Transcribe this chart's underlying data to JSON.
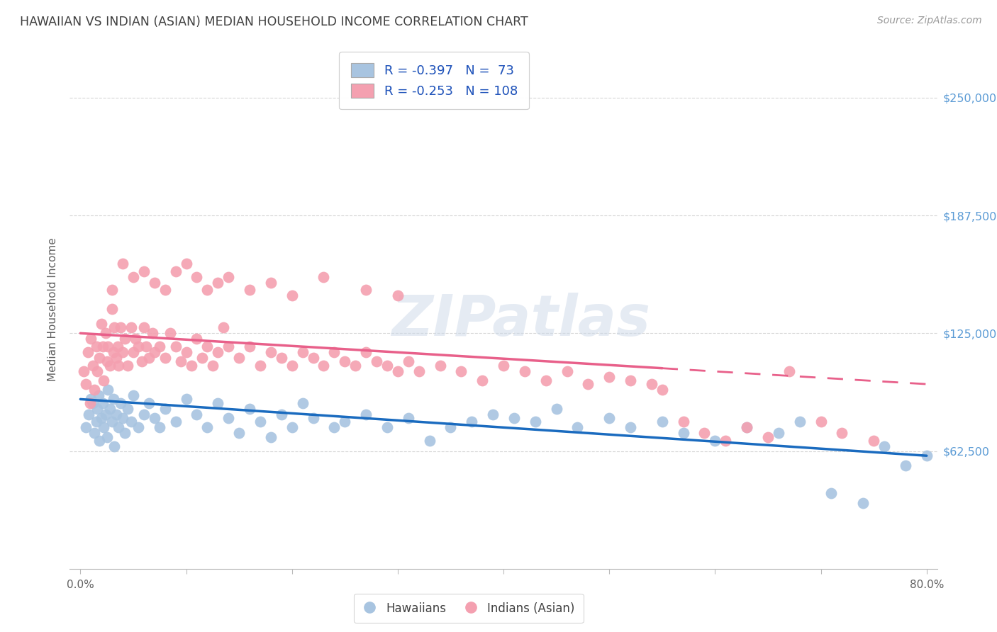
{
  "title": "HAWAIIAN VS INDIAN (ASIAN) MEDIAN HOUSEHOLD INCOME CORRELATION CHART",
  "source": "Source: ZipAtlas.com",
  "ylabel": "Median Household Income",
  "hawaiian_color": "#a8c4e0",
  "indian_color": "#f4a0b0",
  "hawaiian_line_color": "#1a6bbf",
  "indian_line_color": "#e8608a",
  "hawaiians_label": "Hawaiians",
  "indians_label": "Indians (Asian)",
  "watermark": "ZIPatlas",
  "hawaiian_R": -0.397,
  "hawaiian_N": 73,
  "indian_R": -0.253,
  "indian_N": 108,
  "x_min": 0.0,
  "x_max": 80.0,
  "y_min": 0,
  "y_max": 275000,
  "y_ticks": [
    62500,
    125000,
    187500,
    250000
  ],
  "y_tick_labels": [
    "$62,500",
    "$125,000",
    "$187,500",
    "$250,000"
  ],
  "hawaiian_trend_x0": 0,
  "hawaiian_trend_x1": 80,
  "hawaiian_trend_y0": 90000,
  "hawaiian_trend_y1": 60000,
  "indian_trend_solid_x0": 0,
  "indian_trend_solid_x1": 55,
  "indian_trend_dashed_x0": 55,
  "indian_trend_dashed_x1": 80,
  "indian_trend_y0": 125000,
  "indian_trend_y1": 98000,
  "bg_color": "#ffffff",
  "grid_color": "#cccccc",
  "tick_label_color_right": "#5b9bd5",
  "title_color": "#404040",
  "axis_label_color": "#606060",
  "hawaiian_scatter_x": [
    0.5,
    0.8,
    1.0,
    1.2,
    1.3,
    1.5,
    1.6,
    1.7,
    1.8,
    2.0,
    2.1,
    2.2,
    2.4,
    2.5,
    2.6,
    2.8,
    3.0,
    3.1,
    3.2,
    3.4,
    3.6,
    3.8,
    4.0,
    4.2,
    4.5,
    4.8,
    5.0,
    5.5,
    6.0,
    6.5,
    7.0,
    7.5,
    8.0,
    9.0,
    10.0,
    11.0,
    12.0,
    13.0,
    14.0,
    15.0,
    16.0,
    17.0,
    18.0,
    19.0,
    20.0,
    21.0,
    22.0,
    24.0,
    25.0,
    27.0,
    29.0,
    31.0,
    33.0,
    35.0,
    37.0,
    39.0,
    41.0,
    43.0,
    45.0,
    47.0,
    50.0,
    52.0,
    55.0,
    57.0,
    60.0,
    63.0,
    66.0,
    68.0,
    71.0,
    74.0,
    76.0,
    78.0,
    80.0
  ],
  "hawaiian_scatter_y": [
    75000,
    82000,
    90000,
    88000,
    72000,
    78000,
    85000,
    92000,
    68000,
    80000,
    88000,
    75000,
    82000,
    70000,
    95000,
    85000,
    78000,
    90000,
    65000,
    82000,
    75000,
    88000,
    80000,
    72000,
    85000,
    78000,
    92000,
    75000,
    82000,
    88000,
    80000,
    75000,
    85000,
    78000,
    90000,
    82000,
    75000,
    88000,
    80000,
    72000,
    85000,
    78000,
    70000,
    82000,
    75000,
    88000,
    80000,
    75000,
    78000,
    82000,
    75000,
    80000,
    68000,
    75000,
    78000,
    82000,
    80000,
    78000,
    85000,
    75000,
    80000,
    75000,
    78000,
    72000,
    68000,
    75000,
    72000,
    78000,
    40000,
    35000,
    65000,
    55000,
    60000
  ],
  "indian_scatter_x": [
    0.3,
    0.5,
    0.7,
    0.9,
    1.0,
    1.2,
    1.3,
    1.5,
    1.6,
    1.8,
    2.0,
    2.1,
    2.2,
    2.4,
    2.5,
    2.6,
    2.8,
    3.0,
    3.1,
    3.2,
    3.4,
    3.5,
    3.6,
    3.8,
    4.0,
    4.2,
    4.5,
    4.8,
    5.0,
    5.2,
    5.5,
    5.8,
    6.0,
    6.2,
    6.5,
    6.8,
    7.0,
    7.5,
    8.0,
    8.5,
    9.0,
    9.5,
    10.0,
    10.5,
    11.0,
    11.5,
    12.0,
    12.5,
    13.0,
    13.5,
    14.0,
    15.0,
    16.0,
    17.0,
    18.0,
    19.0,
    20.0,
    21.0,
    22.0,
    23.0,
    24.0,
    25.0,
    26.0,
    27.0,
    28.0,
    29.0,
    30.0,
    31.0,
    32.0,
    34.0,
    36.0,
    38.0,
    40.0,
    42.0,
    44.0,
    46.0,
    48.0,
    50.0,
    52.0,
    54.0,
    55.0,
    57.0,
    59.0,
    61.0,
    63.0,
    65.0,
    67.0,
    70.0,
    72.0,
    75.0,
    3.0,
    4.0,
    5.0,
    6.0,
    7.0,
    8.0,
    9.0,
    10.0,
    11.0,
    12.0,
    13.0,
    14.0,
    16.0,
    18.0,
    20.0,
    23.0,
    27.0,
    30.0
  ],
  "indian_scatter_y": [
    105000,
    98000,
    115000,
    88000,
    122000,
    108000,
    95000,
    118000,
    105000,
    112000,
    130000,
    118000,
    100000,
    125000,
    110000,
    118000,
    108000,
    138000,
    115000,
    128000,
    112000,
    118000,
    108000,
    128000,
    115000,
    122000,
    108000,
    128000,
    115000,
    122000,
    118000,
    110000,
    128000,
    118000,
    112000,
    125000,
    115000,
    118000,
    112000,
    125000,
    118000,
    110000,
    115000,
    108000,
    122000,
    112000,
    118000,
    108000,
    115000,
    128000,
    118000,
    112000,
    118000,
    108000,
    115000,
    112000,
    108000,
    115000,
    112000,
    108000,
    115000,
    110000,
    108000,
    115000,
    110000,
    108000,
    105000,
    110000,
    105000,
    108000,
    105000,
    100000,
    108000,
    105000,
    100000,
    105000,
    98000,
    102000,
    100000,
    98000,
    95000,
    78000,
    72000,
    68000,
    75000,
    70000,
    105000,
    78000,
    72000,
    68000,
    148000,
    162000,
    155000,
    158000,
    152000,
    148000,
    158000,
    162000,
    155000,
    148000,
    152000,
    155000,
    148000,
    152000,
    145000,
    155000,
    148000,
    145000
  ]
}
